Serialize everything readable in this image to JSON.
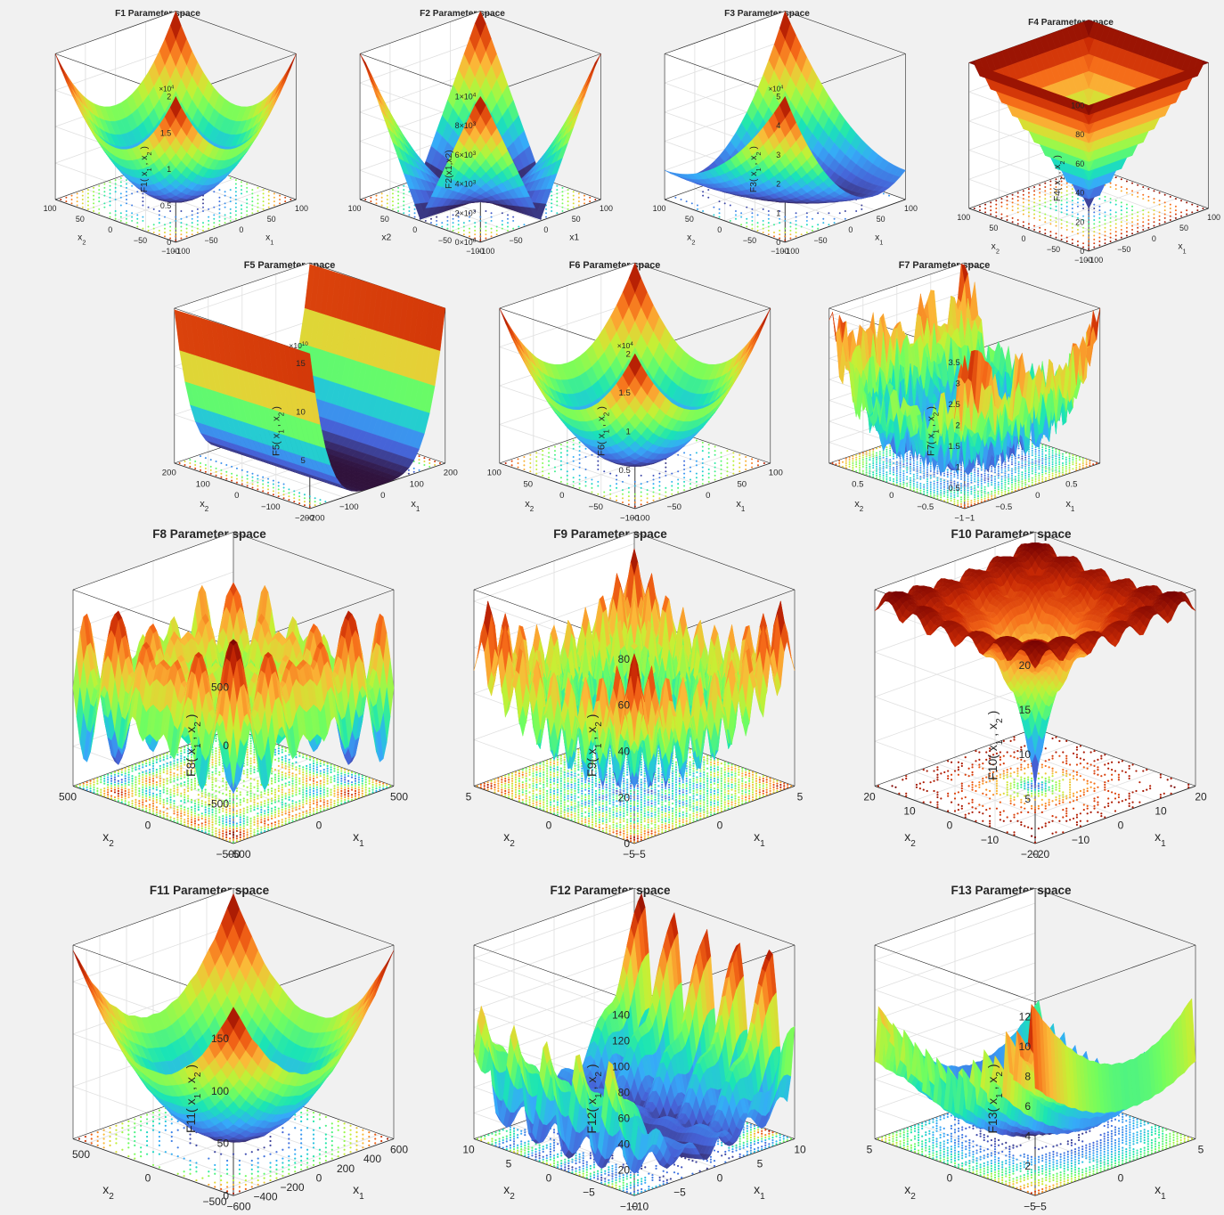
{
  "colors": {
    "background": "#f1f1f1",
    "axes": "#262626",
    "grid": "#e0e0e0",
    "colormap": [
      "#30123b",
      "#4662d7",
      "#36aaf9",
      "#1ae4b6",
      "#72fe5e",
      "#c7ef34",
      "#fbb938",
      "#f56918",
      "#ca2a04",
      "#7a0403"
    ]
  },
  "chart_data": [
    {
      "id": "F1",
      "type": "surface3d",
      "title": "F1 Parameter space",
      "surface": "sphere",
      "zlabel": "F1( x_1 , x_2 )",
      "xlabel": "x_1",
      "ylabel": "x_2",
      "zscale": "×10^4",
      "zticks": [
        "0",
        "0.5",
        "1",
        "1.5",
        "2"
      ],
      "xticks": [
        "-100",
        "-50",
        "0",
        "50",
        "100"
      ],
      "yticks": [
        "-100",
        "-50",
        "0",
        "50",
        "100"
      ],
      "xlim": [
        -100,
        100
      ],
      "ylim": [
        -100,
        100
      ],
      "zlim": [
        0,
        20000
      ],
      "contour": true,
      "grid": true
    },
    {
      "id": "F2",
      "type": "surface3d",
      "title": "F2 Parameter space",
      "surface": "abs_sum_prod",
      "zlabel": "F2(x1,x2)",
      "xlabel": "x1",
      "ylabel": "x2",
      "zticks": [
        "0×10^0",
        "2×10^3",
        "4×10^3",
        "6×10^3",
        "8×10^3",
        "1×10^4"
      ],
      "xticks": [
        "-100",
        "-50",
        "0",
        "50",
        "100"
      ],
      "yticks": [
        "-100",
        "-50",
        "0",
        "50",
        "100"
      ],
      "xlim": [
        -100,
        100
      ],
      "ylim": [
        -100,
        100
      ],
      "zlim": [
        0,
        10000
      ],
      "contour": true,
      "grid": true
    },
    {
      "id": "F3",
      "type": "surface3d",
      "title": "F3 Parameter space",
      "surface": "schwefel12",
      "zlabel": "F3( x_1 , x_2 )",
      "xlabel": "x_1",
      "ylabel": "x_2",
      "zscale": "×10^4",
      "zticks": [
        "0",
        "1",
        "2",
        "3",
        "4",
        "5"
      ],
      "xticks": [
        "-100",
        "-50",
        "0",
        "50",
        "100"
      ],
      "yticks": [
        "-100",
        "-50",
        "0",
        "50",
        "100"
      ],
      "xlim": [
        -100,
        100
      ],
      "ylim": [
        -100,
        100
      ],
      "zlim": [
        0,
        50000
      ],
      "contour": true,
      "grid": true
    },
    {
      "id": "F4",
      "type": "surface3d",
      "title": "F4 Parameter space",
      "surface": "max_abs",
      "zlabel": "F4( x_1 , x_2 )",
      "xlabel": "x_1",
      "ylabel": "x_2",
      "zticks": [
        "0",
        "20",
        "40",
        "60",
        "80",
        "100"
      ],
      "xticks": [
        "-100",
        "-50",
        "0",
        "50",
        "100"
      ],
      "yticks": [
        "-100",
        "-50",
        "0",
        "50",
        "100"
      ],
      "xlim": [
        -100,
        100
      ],
      "ylim": [
        -100,
        100
      ],
      "zlim": [
        0,
        100
      ],
      "contour": true,
      "grid": true
    },
    {
      "id": "F5",
      "type": "surface3d",
      "title": "F5 Parameter space",
      "surface": "rosenbrock",
      "zlabel": "F5( x_1 , x_2 )",
      "xlabel": "x_1",
      "ylabel": "x_2",
      "zscale": "×10^10",
      "zticks": [
        "5",
        "10",
        "15"
      ],
      "xticks": [
        "-200",
        "-100",
        "0",
        "100",
        "200"
      ],
      "yticks": [
        "-200",
        "-100",
        "0",
        "100",
        "200"
      ],
      "xlim": [
        -200,
        200
      ],
      "ylim": [
        -200,
        200
      ],
      "zlim": [
        0,
        160000000000
      ],
      "contour": true,
      "grid": true
    },
    {
      "id": "F6",
      "type": "surface3d",
      "title": "F6 Parameter space",
      "surface": "step",
      "zlabel": "F6( x_1 , x_2 )",
      "xlabel": "x_1",
      "ylabel": "x_2",
      "zscale": "×10^4",
      "zticks": [
        "0.5",
        "1",
        "1.5",
        "2"
      ],
      "xticks": [
        "-100",
        "-50",
        "0",
        "50",
        "100"
      ],
      "yticks": [
        "-100",
        "-50",
        "0",
        "50",
        "100"
      ],
      "xlim": [
        -100,
        100
      ],
      "ylim": [
        -100,
        100
      ],
      "zlim": [
        0,
        20000
      ],
      "contour": true,
      "grid": true
    },
    {
      "id": "F7",
      "type": "surface3d",
      "title": "F7 Parameter space",
      "surface": "quartic_noise",
      "zlabel": "F7( x_1 , x_2 )",
      "xlabel": "x_1",
      "ylabel": "x_2",
      "zticks": [
        "0.5",
        "1",
        "1.5",
        "2",
        "2.5",
        "3",
        "3.5"
      ],
      "xticks": [
        "-1",
        "-0.5",
        "0",
        "0.5"
      ],
      "yticks": [
        "-1",
        "-0.5",
        "0",
        "0.5"
      ],
      "xlim": [
        -1,
        1
      ],
      "ylim": [
        -1,
        1
      ],
      "zlim": [
        0,
        3.7
      ],
      "contour": true,
      "grid": true
    },
    {
      "id": "F8",
      "type": "surface3d",
      "title": "F8 Parameter space",
      "surface": "schwefel",
      "zlabel": "F8( x_1 , x_2 )",
      "xlabel": "x_1",
      "ylabel": "x_2",
      "zticks": [
        "-500",
        "0",
        "500"
      ],
      "xticks": [
        "-500",
        "0",
        "500"
      ],
      "yticks": [
        "-500",
        "0",
        "500"
      ],
      "xlim": [
        -500,
        500
      ],
      "ylim": [
        -500,
        500
      ],
      "zlim": [
        -840,
        840
      ],
      "contour": true,
      "grid": true
    },
    {
      "id": "F9",
      "type": "surface3d",
      "title": "F9 Parameter space",
      "surface": "rastrigin",
      "zlabel": "F9( x_1 , x_2 )",
      "xlabel": "x_1",
      "ylabel": "x_2",
      "zticks": [
        "0",
        "20",
        "40",
        "60",
        "80"
      ],
      "xticks": [
        "-5",
        "0",
        "5"
      ],
      "yticks": [
        "-5",
        "0",
        "5"
      ],
      "xlim": [
        -5,
        5
      ],
      "ylim": [
        -5,
        5
      ],
      "zlim": [
        0,
        85
      ],
      "contour": true,
      "grid": true
    },
    {
      "id": "F10",
      "type": "surface3d",
      "title": "F10 Parameter space",
      "surface": "ackley",
      "zlabel": "F10( x_1 , x_2 )",
      "xlabel": "x_1",
      "ylabel": "x_2",
      "zticks": [
        "5",
        "10",
        "15",
        "20"
      ],
      "xticks": [
        "-20",
        "-10",
        "0",
        "10",
        "20"
      ],
      "yticks": [
        "-20",
        "-10",
        "0",
        "10",
        "20"
      ],
      "xlim": [
        -20,
        20
      ],
      "ylim": [
        -20,
        20
      ],
      "zlim": [
        0,
        22
      ],
      "contour": true,
      "grid": true
    },
    {
      "id": "F11",
      "type": "surface3d",
      "title": "F11 Parameter space",
      "surface": "griewank",
      "zlabel": "F11( x_1 , x_2 )",
      "xlabel": "x_1",
      "ylabel": "x_2",
      "zticks": [
        "0",
        "50",
        "100",
        "150"
      ],
      "xticks": [
        "-600",
        "-400",
        "-200",
        "0",
        "200",
        "400",
        "600"
      ],
      "yticks": [
        "-500",
        "0",
        "500"
      ],
      "xlim": [
        -600,
        600
      ],
      "ylim": [
        -600,
        600
      ],
      "zlim": [
        0,
        185
      ],
      "contour": true,
      "grid": true
    },
    {
      "id": "F12",
      "type": "surface3d",
      "title": "F12 Parameter space",
      "surface": "penalized1",
      "zlabel": "F12( x_1 , x_2 )",
      "xlabel": "x_1",
      "ylabel": "x_2",
      "zticks": [
        "20",
        "40",
        "60",
        "80",
        "100",
        "120",
        "140"
      ],
      "xticks": [
        "-10",
        "-5",
        "0",
        "5",
        "10"
      ],
      "yticks": [
        "-10",
        "-5",
        "0",
        "5",
        "10"
      ],
      "xlim": [
        -10,
        10
      ],
      "ylim": [
        -10,
        10
      ],
      "zlim": [
        0,
        150
      ],
      "contour": true,
      "grid": true
    },
    {
      "id": "F13",
      "type": "surface3d",
      "title": "F13 Parameter space",
      "surface": "penalized2",
      "zlabel": "F13( x_1 , x_2 )",
      "xlabel": "x_1",
      "ylabel": "x_2",
      "zticks": [
        "2",
        "4",
        "6",
        "8",
        "10",
        "12"
      ],
      "xticks": [
        "-5",
        "0",
        "5"
      ],
      "yticks": [
        "-5",
        "0",
        "5"
      ],
      "xlim": [
        -5,
        5
      ],
      "ylim": [
        -5,
        5
      ],
      "zlim": [
        0,
        13
      ],
      "contour": true,
      "grid": true
    }
  ]
}
